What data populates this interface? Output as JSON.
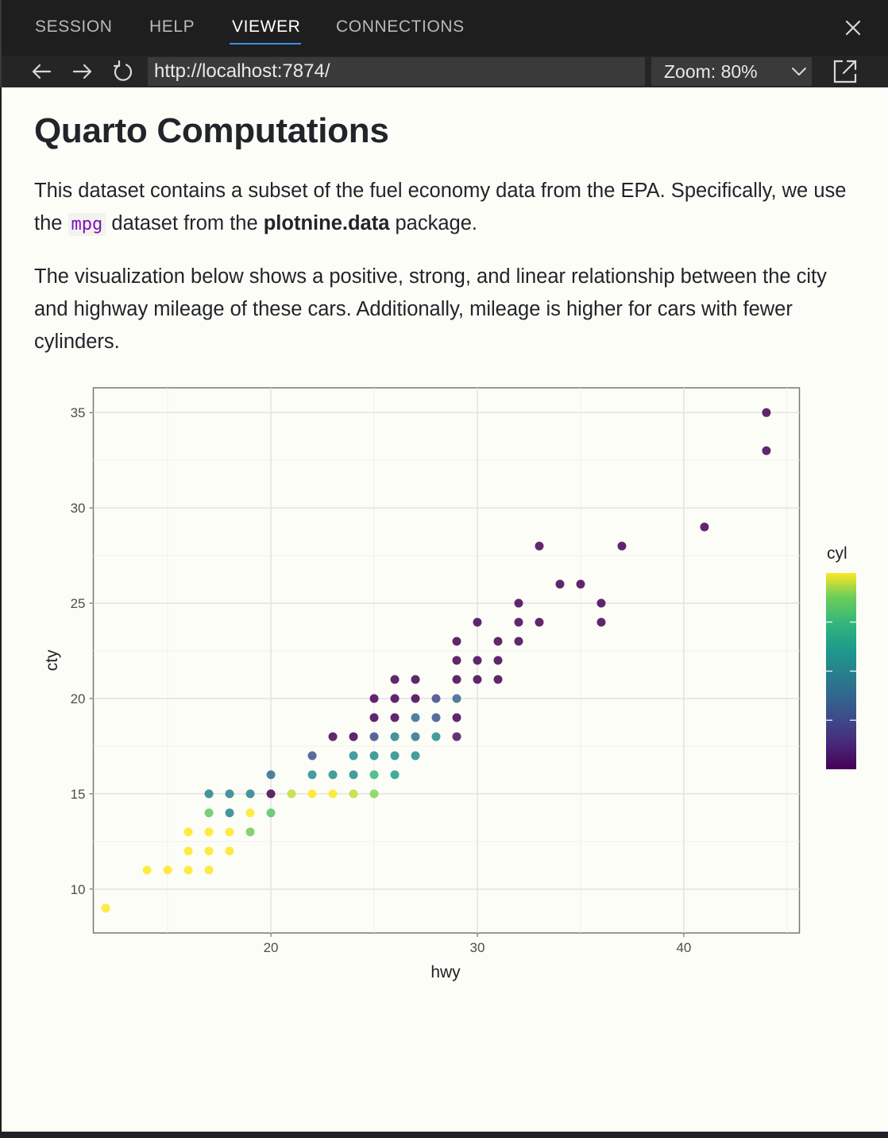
{
  "tabs": [
    {
      "label": "SESSION",
      "active": false
    },
    {
      "label": "HELP",
      "active": false
    },
    {
      "label": "VIEWER",
      "active": true
    },
    {
      "label": "CONNECTIONS",
      "active": false
    }
  ],
  "toolbar": {
    "url": "http://localhost:7874/",
    "zoom": "Zoom: 80%",
    "icons": [
      "back-arrow-icon",
      "forward-arrow-icon",
      "refresh-icon",
      "chevron-down-icon",
      "popout-icon",
      "close-icon"
    ]
  },
  "doc": {
    "title": "Quarto Computations",
    "p1_a": "This dataset contains a subset of the fuel economy data from the EPA. Specifically, we use the ",
    "p1_code": "mpg",
    "p1_b": " dataset from the ",
    "p1_bold": "plotnine.data",
    "p1_c": " package.",
    "p2": "The visualization below shows a positive, strong, and linear relationship between the city and highway mileage of these cars. Additionally, mileage is higher for cars with fewer cylinders."
  },
  "colors": {
    "accent": "#3b8eea",
    "code": "#7d12ba",
    "panel": "#fdfdf8"
  },
  "chart_data": {
    "type": "scatter",
    "xlabel": "hwy",
    "ylabel": "cty",
    "legend_title": "cyl",
    "legend_placement": "right",
    "colormap": "viridis",
    "grid": true,
    "xlim": [
      11.4,
      45.6
    ],
    "ylim": [
      7.7,
      36.3
    ],
    "xticks": [
      20,
      30,
      40
    ],
    "yticks": [
      10,
      15,
      20,
      25,
      30,
      35
    ],
    "legend_ticks": [
      5,
      6,
      7
    ],
    "points": [
      {
        "x": 12,
        "y": 9,
        "cyl": 8
      },
      {
        "x": 14,
        "y": 11,
        "cyl": 8
      },
      {
        "x": 15,
        "y": 11,
        "cyl": 8
      },
      {
        "x": 16,
        "y": 11,
        "cyl": 8
      },
      {
        "x": 17,
        "y": 11,
        "cyl": 8
      },
      {
        "x": 16,
        "y": 12,
        "cyl": 8
      },
      {
        "x": 17,
        "y": 12,
        "cyl": 8
      },
      {
        "x": 18,
        "y": 12,
        "cyl": 8
      },
      {
        "x": 16,
        "y": 13,
        "cyl": 8
      },
      {
        "x": 17,
        "y": 13,
        "cyl": 8
      },
      {
        "x": 18,
        "y": 13,
        "cyl": 8
      },
      {
        "x": 19,
        "y": 13,
        "cyl": 7.5
      },
      {
        "x": 17,
        "y": 14,
        "cyl": 7.4
      },
      {
        "x": 18,
        "y": 14,
        "cyl": 6
      },
      {
        "x": 19,
        "y": 14,
        "cyl": 8
      },
      {
        "x": 20,
        "y": 14,
        "cyl": 7.3
      },
      {
        "x": 17,
        "y": 15,
        "cyl": 6
      },
      {
        "x": 18,
        "y": 15,
        "cyl": 6
      },
      {
        "x": 19,
        "y": 15,
        "cyl": 6
      },
      {
        "x": 20,
        "y": 15,
        "cyl": 4
      },
      {
        "x": 21,
        "y": 15,
        "cyl": 7.8
      },
      {
        "x": 22,
        "y": 15,
        "cyl": 8
      },
      {
        "x": 23,
        "y": 15,
        "cyl": 8
      },
      {
        "x": 24,
        "y": 15,
        "cyl": 7.8
      },
      {
        "x": 25,
        "y": 15,
        "cyl": 7.6
      },
      {
        "x": 20,
        "y": 16,
        "cyl": 5.6
      },
      {
        "x": 22,
        "y": 16,
        "cyl": 6.2
      },
      {
        "x": 23,
        "y": 16,
        "cyl": 6.2
      },
      {
        "x": 24,
        "y": 16,
        "cyl": 6.2
      },
      {
        "x": 25,
        "y": 16,
        "cyl": 7
      },
      {
        "x": 26,
        "y": 16,
        "cyl": 6.5
      },
      {
        "x": 22,
        "y": 17,
        "cyl": 5.2
      },
      {
        "x": 24,
        "y": 17,
        "cyl": 6.2
      },
      {
        "x": 25,
        "y": 17,
        "cyl": 6.2
      },
      {
        "x": 26,
        "y": 17,
        "cyl": 6.2
      },
      {
        "x": 27,
        "y": 17,
        "cyl": 6.2
      },
      {
        "x": 23,
        "y": 18,
        "cyl": 4
      },
      {
        "x": 24,
        "y": 18,
        "cyl": 4
      },
      {
        "x": 25,
        "y": 18,
        "cyl": 5
      },
      {
        "x": 26,
        "y": 18,
        "cyl": 6
      },
      {
        "x": 27,
        "y": 18,
        "cyl": 5.7
      },
      {
        "x": 28,
        "y": 18,
        "cyl": 6.2
      },
      {
        "x": 29,
        "y": 18,
        "cyl": 4.2
      },
      {
        "x": 25,
        "y": 19,
        "cyl": 4
      },
      {
        "x": 26,
        "y": 19,
        "cyl": 4
      },
      {
        "x": 27,
        "y": 19,
        "cyl": 5.6
      },
      {
        "x": 28,
        "y": 19,
        "cyl": 5.2
      },
      {
        "x": 29,
        "y": 19,
        "cyl": 4
      },
      {
        "x": 25,
        "y": 20,
        "cyl": 4
      },
      {
        "x": 26,
        "y": 20,
        "cyl": 4
      },
      {
        "x": 27,
        "y": 20,
        "cyl": 4
      },
      {
        "x": 28,
        "y": 20,
        "cyl": 5
      },
      {
        "x": 29,
        "y": 20,
        "cyl": 5.5
      },
      {
        "x": 26,
        "y": 21,
        "cyl": 4
      },
      {
        "x": 27,
        "y": 21,
        "cyl": 4
      },
      {
        "x": 29,
        "y": 21,
        "cyl": 4
      },
      {
        "x": 30,
        "y": 21,
        "cyl": 4
      },
      {
        "x": 31,
        "y": 21,
        "cyl": 4
      },
      {
        "x": 29,
        "y": 22,
        "cyl": 4
      },
      {
        "x": 30,
        "y": 22,
        "cyl": 4
      },
      {
        "x": 31,
        "y": 22,
        "cyl": 4
      },
      {
        "x": 29,
        "y": 23,
        "cyl": 4
      },
      {
        "x": 31,
        "y": 23,
        "cyl": 4
      },
      {
        "x": 32,
        "y": 23,
        "cyl": 4
      },
      {
        "x": 30,
        "y": 24,
        "cyl": 4
      },
      {
        "x": 32,
        "y": 24,
        "cyl": 4
      },
      {
        "x": 33,
        "y": 24,
        "cyl": 4
      },
      {
        "x": 36,
        "y": 24,
        "cyl": 4
      },
      {
        "x": 32,
        "y": 25,
        "cyl": 4
      },
      {
        "x": 36,
        "y": 25,
        "cyl": 4
      },
      {
        "x": 34,
        "y": 26,
        "cyl": 4
      },
      {
        "x": 35,
        "y": 26,
        "cyl": 4
      },
      {
        "x": 33,
        "y": 28,
        "cyl": 4
      },
      {
        "x": 37,
        "y": 28,
        "cyl": 4
      },
      {
        "x": 41,
        "y": 29,
        "cyl": 4
      },
      {
        "x": 44,
        "y": 33,
        "cyl": 4
      },
      {
        "x": 44,
        "y": 35,
        "cyl": 4
      }
    ]
  }
}
